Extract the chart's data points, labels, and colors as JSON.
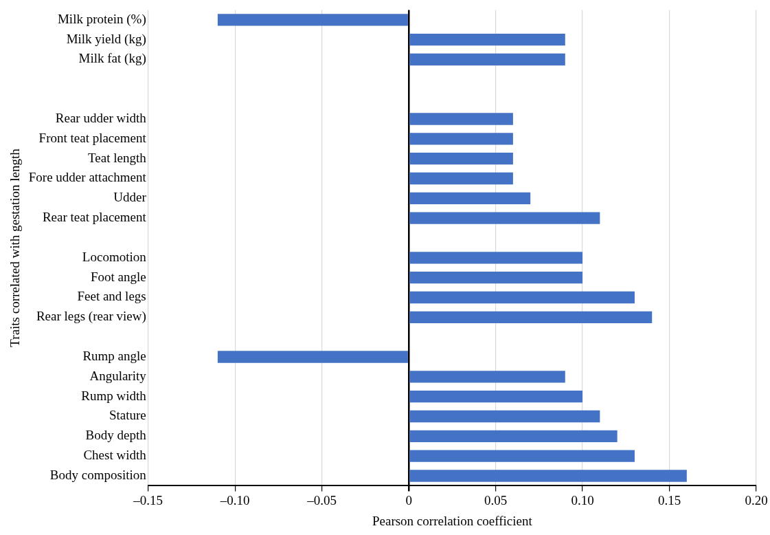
{
  "chart_data": {
    "type": "bar",
    "orientation": "horizontal",
    "xlabel": "Pearson correlation coefficient",
    "ylabel": "Traits correlated with gestation length",
    "categories": [
      "Milk protein (%)",
      "Milk yield (kg)",
      "Milk fat (kg)",
      null,
      null,
      "Rear udder width",
      "Front teat placement",
      "Teat length",
      "Fore udder attachment",
      "Udder",
      "Rear teat placement",
      null,
      "Locomotion",
      "Foot angle",
      "Feet and legs",
      "Rear legs (rear view)",
      null,
      "Rump angle",
      "Angularity",
      "Rump width",
      "Stature",
      "Body depth",
      "Chest width",
      "Body composition"
    ],
    "values": [
      -0.11,
      0.09,
      0.09,
      null,
      null,
      0.06,
      0.06,
      0.06,
      0.06,
      0.07,
      0.11,
      null,
      0.1,
      0.1,
      0.13,
      0.14,
      null,
      -0.11,
      0.09,
      0.1,
      0.11,
      0.12,
      0.13,
      0.16
    ],
    "color": "#4472c4",
    "xlim": [
      -0.15,
      0.2
    ],
    "xticks": [
      {
        "value": -0.15,
        "label": "–0.15"
      },
      {
        "value": -0.1,
        "label": "–0.10"
      },
      {
        "value": -0.05,
        "label": "–0.05"
      },
      0,
      0.05,
      {
        "value": 0.1,
        "label": "0.10"
      },
      0.15,
      {
        "value": 0.2,
        "label": "0.20"
      }
    ],
    "grid": "x",
    "legend": false
  }
}
